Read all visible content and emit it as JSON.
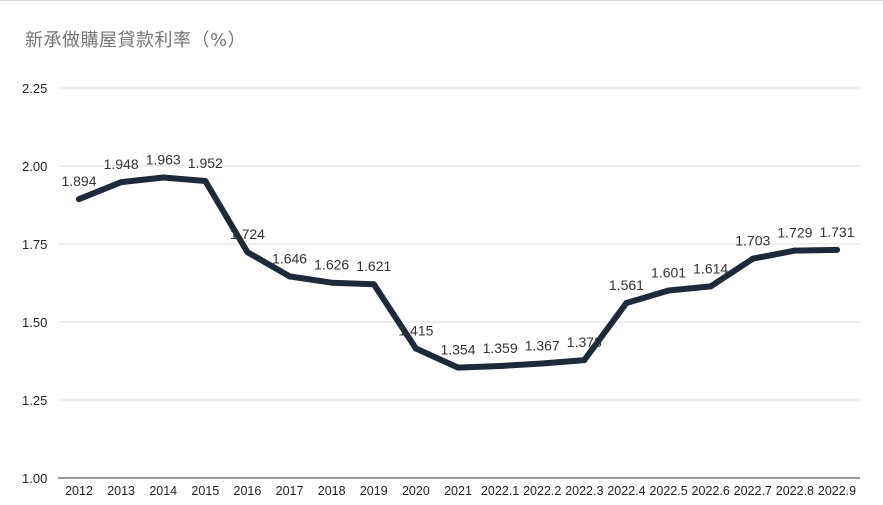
{
  "chart_data": {
    "type": "line",
    "title": "新承做購屋貸款利率（%）",
    "xlabel": "",
    "ylabel": "",
    "categories": [
      "2012",
      "2013",
      "2014",
      "2015",
      "2016",
      "2017",
      "2018",
      "2019",
      "2020",
      "2021",
      "2022.1",
      "2022.2",
      "2022.3",
      "2022.4",
      "2022.5",
      "2022.6",
      "2022.7",
      "2022.8",
      "2022.9"
    ],
    "series": [
      {
        "values": [
          1.894,
          1.948,
          1.963,
          1.952,
          1.724,
          1.646,
          1.626,
          1.621,
          1.415,
          1.354,
          1.359,
          1.367,
          1.378,
          1.561,
          1.601,
          1.614,
          1.703,
          1.729,
          1.731
        ],
        "labels": [
          "1.894",
          "1.948",
          "1.963",
          "1.952",
          "1.724",
          "1.646",
          "1.626",
          "1.621",
          "1.415",
          "1.354",
          "1.359",
          "1.367",
          "1.378",
          "1.561",
          "1.601",
          "1.614",
          "1.703",
          "1.729",
          "1.731"
        ],
        "color": "#1e2a38"
      }
    ],
    "ylim": [
      1.0,
      2.25
    ],
    "yticks": [
      "1.00",
      "1.25",
      "1.50",
      "1.75",
      "2.00",
      "2.25"
    ],
    "grid": true,
    "legend": "none"
  }
}
